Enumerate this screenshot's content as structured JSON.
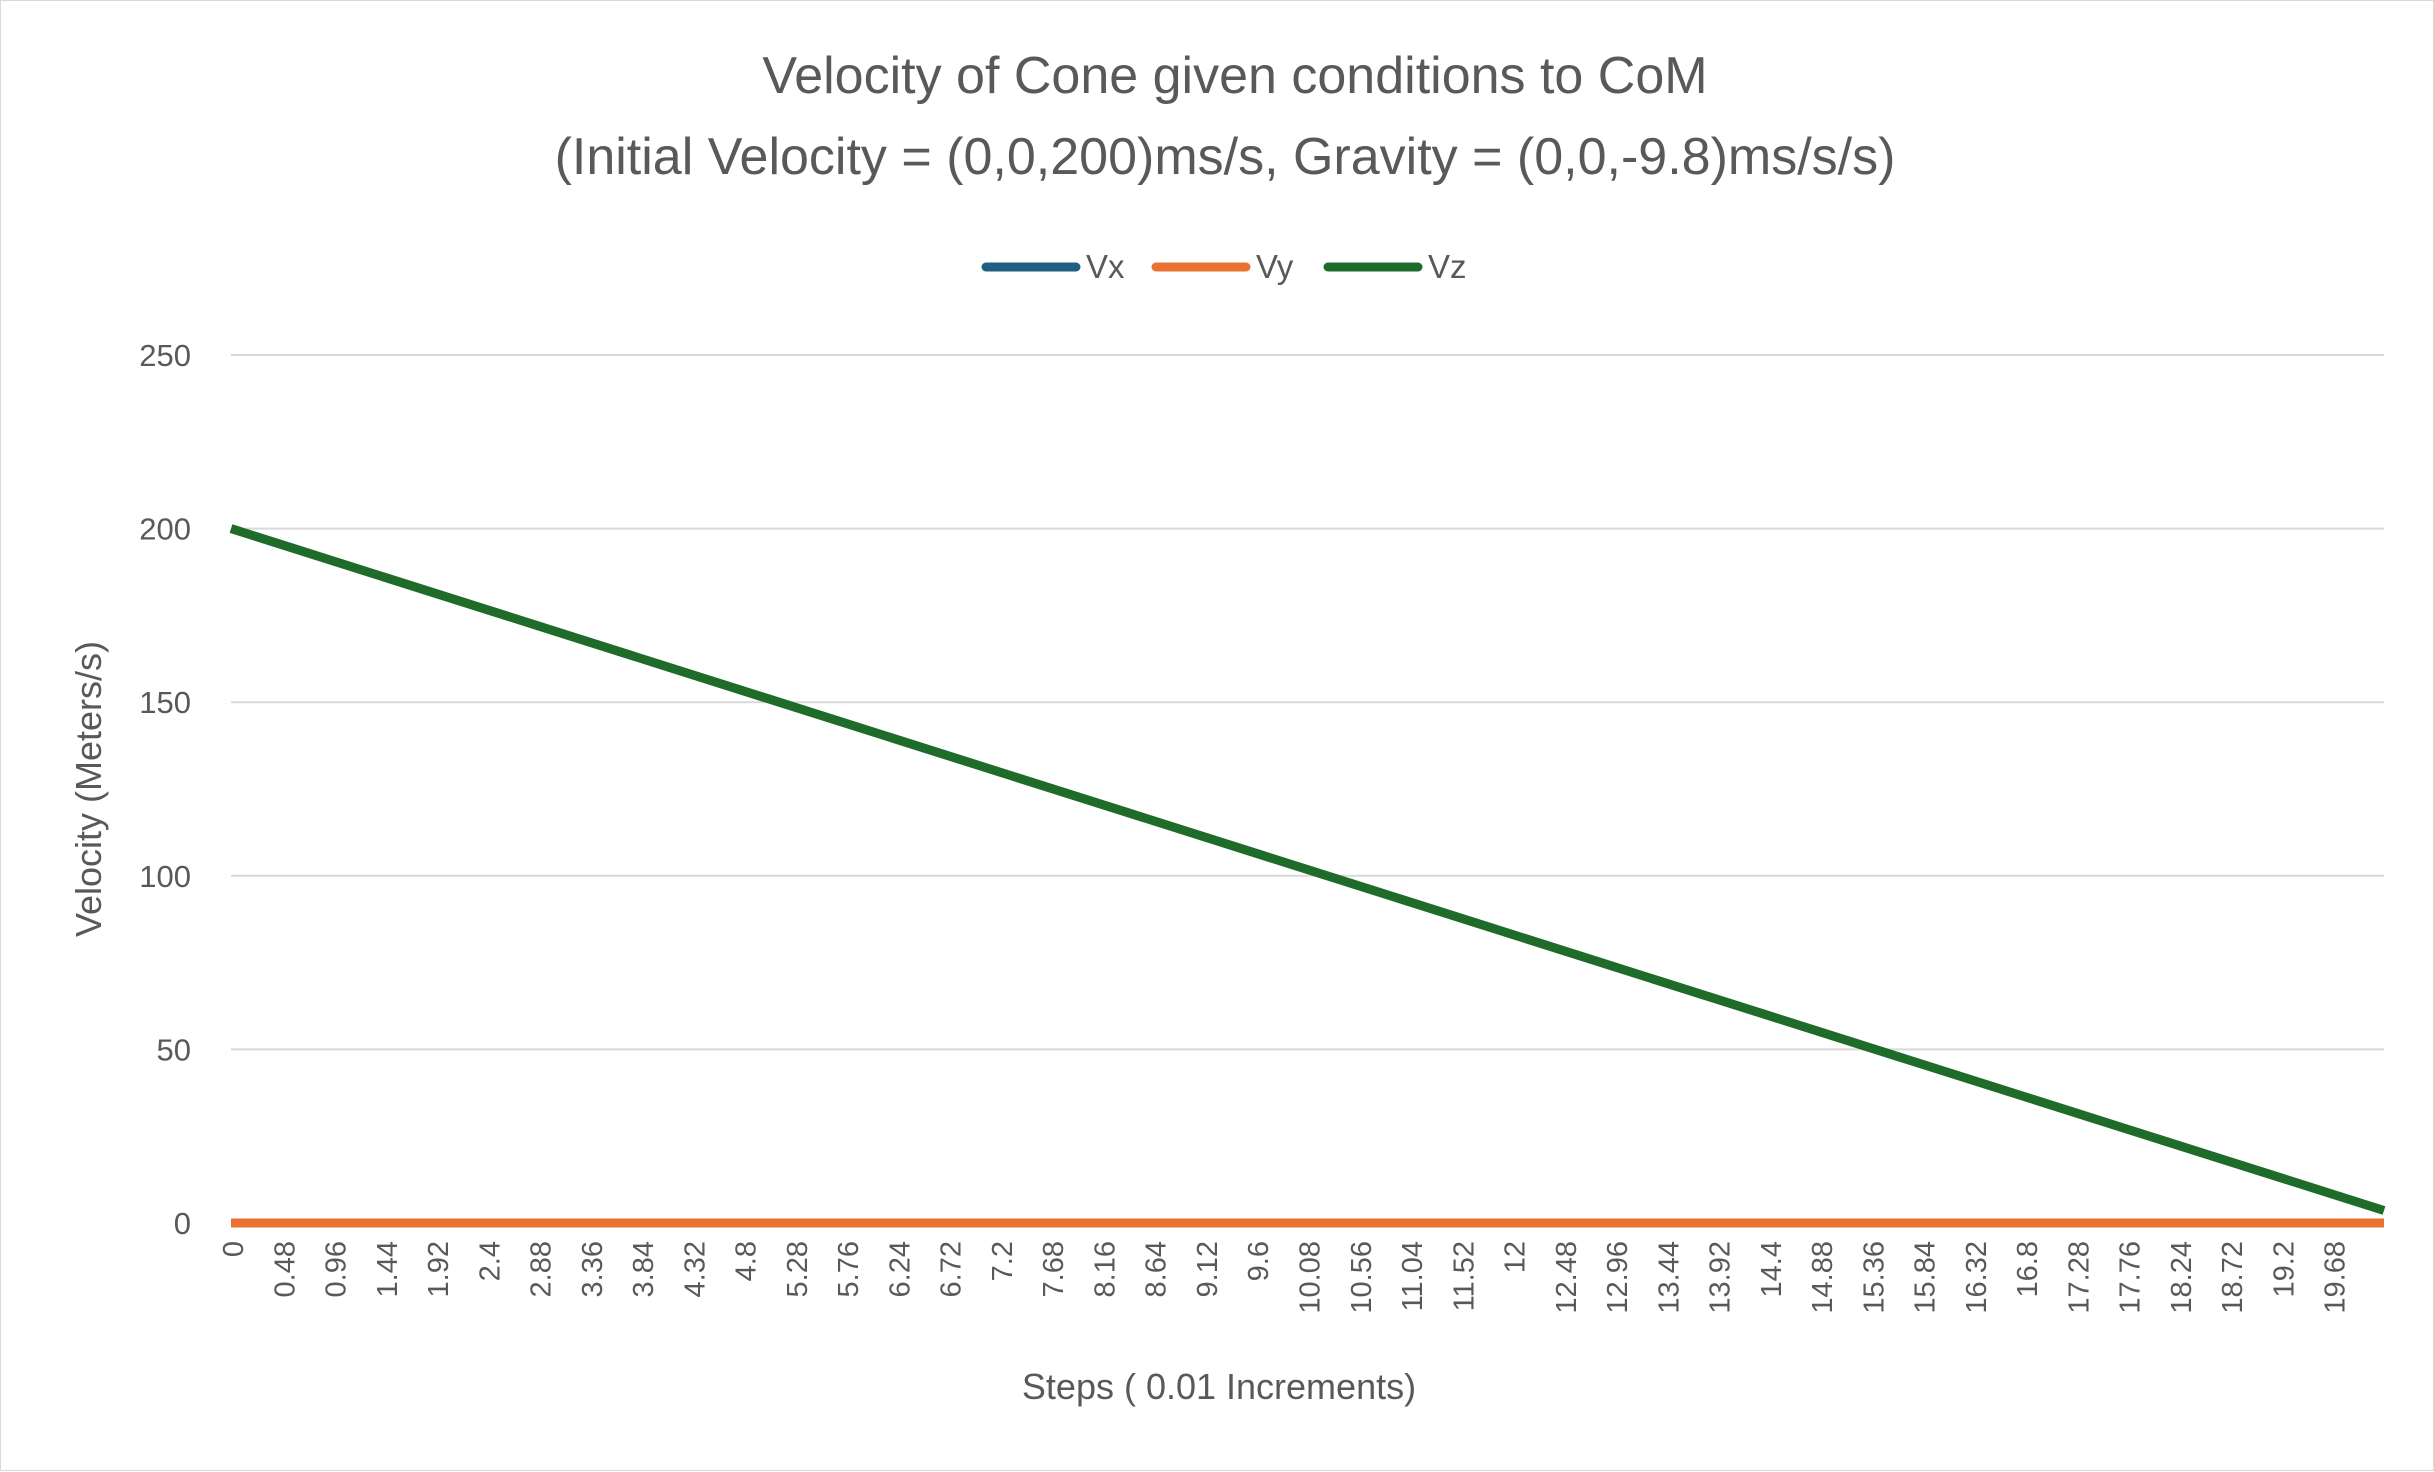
{
  "chart_data": {
    "type": "line",
    "title": "Velocity of Cone given conditions to CoM",
    "subtitle": "(Initial Velocity = (0,0,200)ms/s, Gravity = (0,0,-9.8)ms/s/s)",
    "xlabel": "Steps ( 0.01 Increments)",
    "ylabel": "Velocity (Meters/s)",
    "x_range": [
      0,
      20.16
    ],
    "ylim": [
      0,
      250
    ],
    "y_ticks": [
      0,
      50,
      100,
      150,
      200,
      250
    ],
    "x_tick_labels": [
      "0",
      "0.48",
      "0.96",
      "1.44",
      "1.92",
      "2.4",
      "2.88",
      "3.36",
      "3.84",
      "4.32",
      "4.8",
      "5.28",
      "5.76",
      "6.24",
      "6.72",
      "7.2",
      "7.68",
      "8.16",
      "8.64",
      "9.12",
      "9.6",
      "10.08",
      "10.56",
      "11.04",
      "11.52",
      "12",
      "12.48",
      "12.96",
      "13.44",
      "13.92",
      "14.4",
      "14.88",
      "15.36",
      "15.84",
      "16.32",
      "16.8",
      "17.28",
      "17.76",
      "18.24",
      "18.72",
      "19.2",
      "19.68"
    ],
    "grid": true,
    "legend_position": "top",
    "series": [
      {
        "name": "Vx",
        "color": "#1f5f82",
        "x": [
          0,
          20.16
        ],
        "y": [
          0,
          0
        ]
      },
      {
        "name": "Vy",
        "color": "#e97132",
        "x": [
          0,
          20.16
        ],
        "y": [
          0,
          0
        ]
      },
      {
        "name": "Vz",
        "color": "#1e6b2a",
        "x": [
          0,
          20.16
        ],
        "y": [
          200,
          3.6
        ]
      }
    ]
  }
}
